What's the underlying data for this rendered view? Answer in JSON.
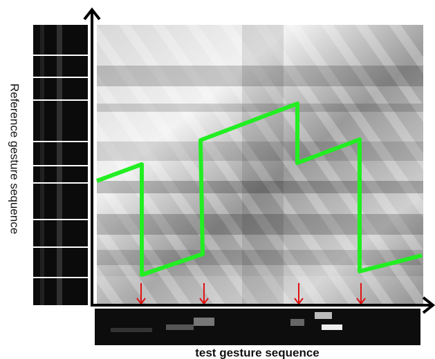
{
  "labels": {
    "y_axis": "Reference gesture sequence",
    "x_axis": "test gesture sequence"
  }
}
